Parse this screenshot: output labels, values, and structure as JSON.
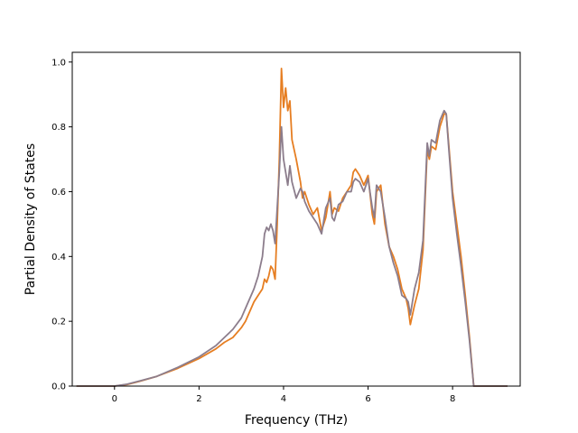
{
  "chart_data": {
    "type": "line",
    "title": "",
    "xlabel": "Frequency (THz)",
    "ylabel": "Partial Density of States",
    "xlim": [
      -1.0,
      9.6
    ],
    "ylim": [
      0.0,
      1.03
    ],
    "xticks": [
      0,
      2,
      4,
      6,
      8
    ],
    "yticks": [
      0.0,
      0.2,
      0.4,
      0.6,
      0.8,
      1.0
    ],
    "xtick_labels": [
      "0",
      "2",
      "4",
      "6",
      "8"
    ],
    "ytick_labels": [
      "0.0",
      "0.2",
      "0.4",
      "0.6",
      "0.8",
      "1.0"
    ],
    "grid": false,
    "legend": "none",
    "series": [
      {
        "color": "#e67e22",
        "points": [
          [
            -0.9,
            0.0
          ],
          [
            0.0,
            0.0
          ],
          [
            0.3,
            0.005
          ],
          [
            0.6,
            0.015
          ],
          [
            1.0,
            0.03
          ],
          [
            1.5,
            0.055
          ],
          [
            2.0,
            0.085
          ],
          [
            2.4,
            0.115
          ],
          [
            2.6,
            0.135
          ],
          [
            2.8,
            0.15
          ],
          [
            3.0,
            0.18
          ],
          [
            3.1,
            0.2
          ],
          [
            3.2,
            0.23
          ],
          [
            3.3,
            0.26
          ],
          [
            3.4,
            0.28
          ],
          [
            3.5,
            0.3
          ],
          [
            3.55,
            0.33
          ],
          [
            3.6,
            0.32
          ],
          [
            3.65,
            0.34
          ],
          [
            3.7,
            0.37
          ],
          [
            3.75,
            0.36
          ],
          [
            3.8,
            0.33
          ],
          [
            3.85,
            0.5
          ],
          [
            3.9,
            0.7
          ],
          [
            3.95,
            0.98
          ],
          [
            4.0,
            0.86
          ],
          [
            4.05,
            0.92
          ],
          [
            4.1,
            0.85
          ],
          [
            4.15,
            0.88
          ],
          [
            4.2,
            0.76
          ],
          [
            4.3,
            0.7
          ],
          [
            4.4,
            0.63
          ],
          [
            4.45,
            0.58
          ],
          [
            4.5,
            0.6
          ],
          [
            4.6,
            0.56
          ],
          [
            4.7,
            0.53
          ],
          [
            4.8,
            0.55
          ],
          [
            4.9,
            0.48
          ],
          [
            5.0,
            0.52
          ],
          [
            5.1,
            0.6
          ],
          [
            5.15,
            0.53
          ],
          [
            5.2,
            0.55
          ],
          [
            5.3,
            0.54
          ],
          [
            5.4,
            0.58
          ],
          [
            5.5,
            0.6
          ],
          [
            5.6,
            0.62
          ],
          [
            5.65,
            0.66
          ],
          [
            5.7,
            0.67
          ],
          [
            5.8,
            0.65
          ],
          [
            5.9,
            0.62
          ],
          [
            6.0,
            0.65
          ],
          [
            6.1,
            0.53
          ],
          [
            6.15,
            0.5
          ],
          [
            6.2,
            0.6
          ],
          [
            6.3,
            0.62
          ],
          [
            6.4,
            0.5
          ],
          [
            6.5,
            0.43
          ],
          [
            6.6,
            0.4
          ],
          [
            6.7,
            0.36
          ],
          [
            6.8,
            0.3
          ],
          [
            6.9,
            0.27
          ],
          [
            6.95,
            0.24
          ],
          [
            7.0,
            0.19
          ],
          [
            7.1,
            0.25
          ],
          [
            7.2,
            0.3
          ],
          [
            7.3,
            0.42
          ],
          [
            7.4,
            0.73
          ],
          [
            7.45,
            0.7
          ],
          [
            7.5,
            0.74
          ],
          [
            7.6,
            0.73
          ],
          [
            7.7,
            0.8
          ],
          [
            7.8,
            0.84
          ],
          [
            7.85,
            0.84
          ],
          [
            7.9,
            0.76
          ],
          [
            8.0,
            0.6
          ],
          [
            8.1,
            0.5
          ],
          [
            8.2,
            0.4
          ],
          [
            8.3,
            0.28
          ],
          [
            8.4,
            0.15
          ],
          [
            8.5,
            0.0
          ],
          [
            9.3,
            0.0
          ]
        ]
      },
      {
        "color": "#8c7d8c",
        "points": [
          [
            -0.9,
            0.0
          ],
          [
            0.0,
            0.0
          ],
          [
            0.3,
            0.006
          ],
          [
            0.6,
            0.016
          ],
          [
            1.0,
            0.03
          ],
          [
            1.5,
            0.058
          ],
          [
            2.0,
            0.09
          ],
          [
            2.4,
            0.125
          ],
          [
            2.6,
            0.15
          ],
          [
            2.8,
            0.175
          ],
          [
            3.0,
            0.21
          ],
          [
            3.1,
            0.24
          ],
          [
            3.2,
            0.27
          ],
          [
            3.3,
            0.3
          ],
          [
            3.4,
            0.34
          ],
          [
            3.5,
            0.4
          ],
          [
            3.55,
            0.47
          ],
          [
            3.6,
            0.49
          ],
          [
            3.65,
            0.48
          ],
          [
            3.7,
            0.5
          ],
          [
            3.75,
            0.48
          ],
          [
            3.8,
            0.44
          ],
          [
            3.85,
            0.55
          ],
          [
            3.9,
            0.66
          ],
          [
            3.95,
            0.8
          ],
          [
            4.0,
            0.7
          ],
          [
            4.05,
            0.66
          ],
          [
            4.1,
            0.62
          ],
          [
            4.15,
            0.68
          ],
          [
            4.2,
            0.63
          ],
          [
            4.3,
            0.58
          ],
          [
            4.4,
            0.61
          ],
          [
            4.45,
            0.6
          ],
          [
            4.5,
            0.57
          ],
          [
            4.6,
            0.54
          ],
          [
            4.7,
            0.52
          ],
          [
            4.8,
            0.5
          ],
          [
            4.9,
            0.47
          ],
          [
            5.0,
            0.55
          ],
          [
            5.1,
            0.58
          ],
          [
            5.15,
            0.52
          ],
          [
            5.2,
            0.51
          ],
          [
            5.3,
            0.56
          ],
          [
            5.4,
            0.57
          ],
          [
            5.5,
            0.6
          ],
          [
            5.6,
            0.6
          ],
          [
            5.65,
            0.63
          ],
          [
            5.7,
            0.64
          ],
          [
            5.8,
            0.63
          ],
          [
            5.9,
            0.6
          ],
          [
            6.0,
            0.64
          ],
          [
            6.1,
            0.55
          ],
          [
            6.15,
            0.52
          ],
          [
            6.2,
            0.62
          ],
          [
            6.3,
            0.6
          ],
          [
            6.4,
            0.52
          ],
          [
            6.5,
            0.43
          ],
          [
            6.6,
            0.38
          ],
          [
            6.7,
            0.34
          ],
          [
            6.8,
            0.28
          ],
          [
            6.9,
            0.27
          ],
          [
            6.95,
            0.26
          ],
          [
            7.0,
            0.22
          ],
          [
            7.1,
            0.3
          ],
          [
            7.2,
            0.35
          ],
          [
            7.3,
            0.45
          ],
          [
            7.4,
            0.75
          ],
          [
            7.45,
            0.71
          ],
          [
            7.5,
            0.76
          ],
          [
            7.6,
            0.75
          ],
          [
            7.7,
            0.82
          ],
          [
            7.8,
            0.85
          ],
          [
            7.85,
            0.84
          ],
          [
            7.9,
            0.75
          ],
          [
            8.0,
            0.58
          ],
          [
            8.1,
            0.47
          ],
          [
            8.2,
            0.37
          ],
          [
            8.3,
            0.26
          ],
          [
            8.4,
            0.14
          ],
          [
            8.5,
            0.0
          ],
          [
            9.3,
            0.0
          ]
        ]
      }
    ]
  }
}
